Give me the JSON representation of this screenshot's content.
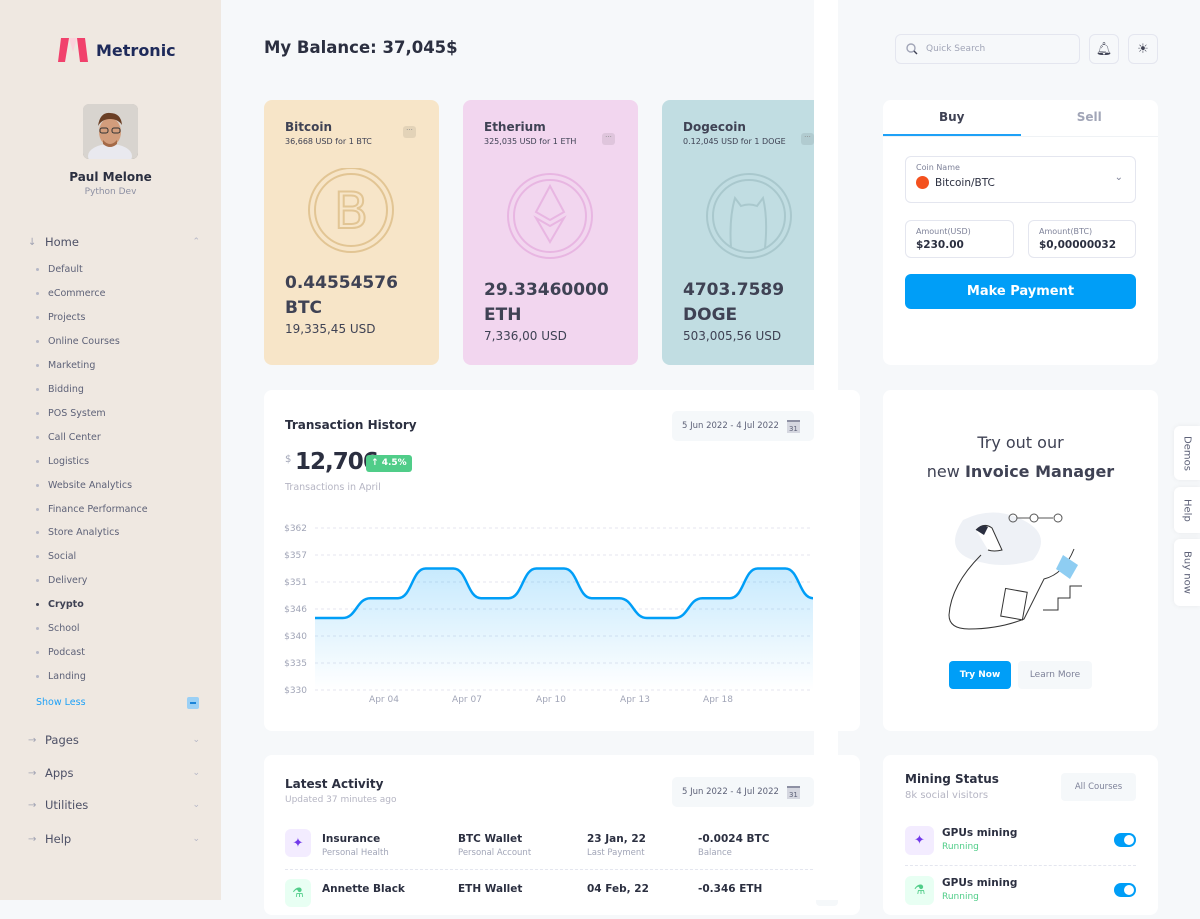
{
  "brand": {
    "name": "Metronic",
    "color": "#f1416c"
  },
  "user": {
    "name": "Paul Melone",
    "role": "Python Dev"
  },
  "sidebar": {
    "home": "Home",
    "items": [
      "Default",
      "eCommerce",
      "Projects",
      "Online Courses",
      "Marketing",
      "Bidding",
      "POS System",
      "Call Center",
      "Logistics",
      "Website Analytics",
      "Finance Performance",
      "Store Analytics",
      "Social",
      "Delivery",
      "Crypto",
      "School",
      "Podcast",
      "Landing"
    ],
    "active": "Crypto",
    "show_less": "Show Less",
    "sections": [
      "Pages",
      "Apps",
      "Utilities",
      "Help"
    ]
  },
  "header": {
    "title": "My Balance: 37,045$",
    "search_placeholder": "Quick Search",
    "icons": [
      "bell-icon",
      "sun-icon"
    ]
  },
  "coins": [
    {
      "name": "Bitcoin",
      "rate": "36,668 USD for 1 BTC",
      "amount": "0.44554576",
      "symbol": "BTC",
      "usd": "19,335,45 USD",
      "color": "#f7e5c8"
    },
    {
      "name": "Etherium",
      "rate": "325,035 USD for 1 ETH",
      "amount": "29.33460000",
      "symbol": "ETH",
      "usd": "7,336,00 USD",
      "color": "#f2d6ef"
    },
    {
      "name": "Dogecoin",
      "rate": "0.12,045 USD for 1 DOGE",
      "amount": "4703.7589",
      "symbol": "DOGE",
      "usd": "503,005,56 USD",
      "color": "#c1dde2"
    }
  ],
  "trade": {
    "tabs": [
      "Buy",
      "Sell"
    ],
    "active_tab": "Buy",
    "coin_label": "Coin Name",
    "coin_value": "Bitcoin/BTC",
    "usd_label": "Amount(USD)",
    "usd_value": "$230.00",
    "btc_label": "Amount(BTC)",
    "btc_value": "$0,00000032",
    "pay": "Make Payment"
  },
  "transactions": {
    "title": "Transaction History",
    "date_range": "5 Jun 2022 - 4 Jul 2022",
    "calendar_day": "31",
    "currency": "$",
    "total": "12,706",
    "change": "4.5%",
    "subtitle": "Transactions in April"
  },
  "chart_data": {
    "type": "area",
    "yticks": [
      "$362",
      "$357",
      "$351",
      "$346",
      "$340",
      "$335",
      "$330"
    ],
    "ylim": [
      330,
      362
    ],
    "xticks": [
      "Apr 04",
      "Apr 07",
      "Apr 10",
      "Apr 13",
      "Apr 18"
    ],
    "values": [
      344,
      344,
      348,
      348,
      354,
      354,
      348,
      348,
      354,
      354,
      348,
      348,
      344,
      344,
      348,
      348,
      354,
      354,
      348
    ],
    "color": "#009ef7",
    "grid": true
  },
  "promo": {
    "line1": "Try out our",
    "line2_prefix": "new ",
    "line2_bold": "Invoice Manager",
    "try": "Try Now",
    "learn": "Learn More"
  },
  "side_tabs": [
    "Demos",
    "Help",
    "Buy now"
  ],
  "activity": {
    "title": "Latest Activity",
    "subtitle": "Updated 37 minutes ago",
    "date_range": "5 Jun 2022 - 4 Jul 2022",
    "calendar_day": "31",
    "rows": [
      {
        "name": "Insurance",
        "desc": "Personal Health",
        "wallet": "BTC Wallet",
        "wallet_desc": "Personal Account",
        "date": "23 Jan, 22",
        "date_desc": "Last Payment",
        "balance": "-0.0024 BTC",
        "balance_desc": "Balance"
      },
      {
        "name": "Annette Black",
        "desc": "",
        "wallet": "ETH Wallet",
        "wallet_desc": "",
        "date": "04 Feb, 22",
        "date_desc": "",
        "balance": "-0.346 ETH",
        "balance_desc": ""
      }
    ]
  },
  "mining": {
    "title": "Mining Status",
    "subtitle": "8k social visitors",
    "button": "All Courses",
    "items": [
      {
        "name": "GPUs mining",
        "status": "Running",
        "on": true
      },
      {
        "name": "GPUs mining",
        "status": "Running",
        "on": true
      }
    ]
  }
}
